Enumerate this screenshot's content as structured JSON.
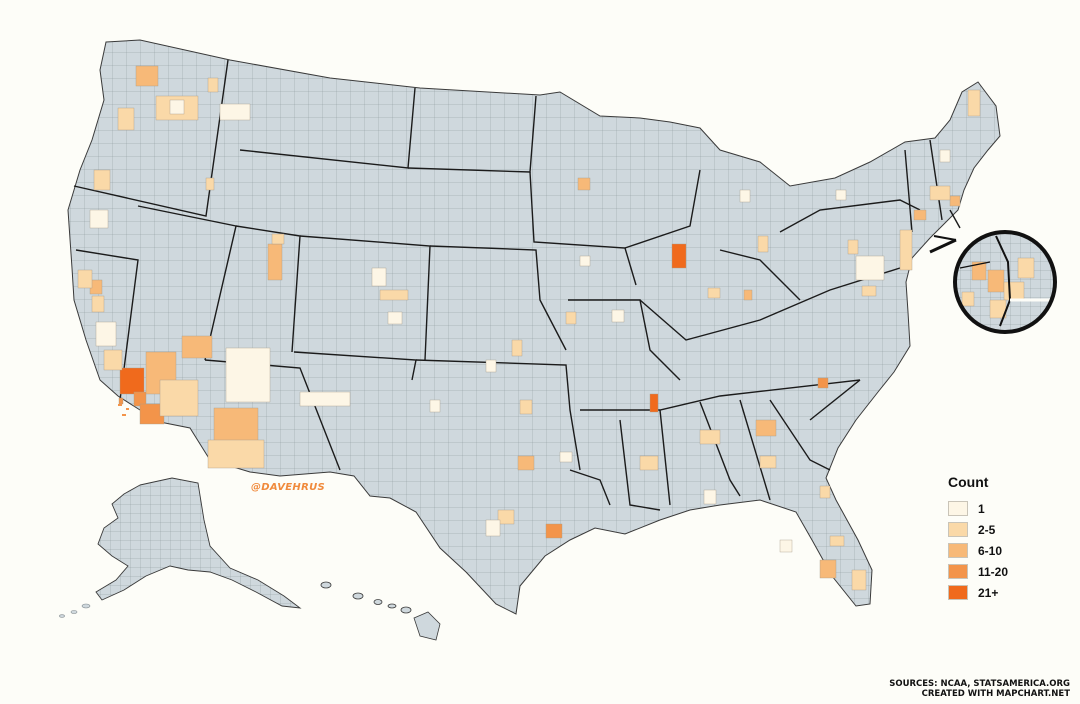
{
  "map": {
    "title": "",
    "subject": "US counties map",
    "colors": {
      "background": "#fdfdf8",
      "county_fill": "#cfd8dd",
      "county_border": "#8c969c",
      "state_border": "#1b1b1b",
      "watermark": "#f08a3c"
    }
  },
  "legend": {
    "title": "Count",
    "items": [
      {
        "label": "1",
        "color": "#fdf6e6"
      },
      {
        "label": "2-5",
        "color": "#fad9a8"
      },
      {
        "label": "6-10",
        "color": "#f7b978"
      },
      {
        "label": "11-20",
        "color": "#f3944a"
      },
      {
        "label": "21+",
        "color": "#f06a1c"
      }
    ]
  },
  "watermark": "@DAVEHRUS",
  "sources": {
    "line1": "SOURCES: NCAA, STATSAMERICA.ORG",
    "line2": "CREATED WITH MAPCHART.NET"
  },
  "highlights": [
    {
      "area": "Los Angeles CA",
      "level": "21+"
    },
    {
      "area": "Cook IL",
      "level": "21+"
    },
    {
      "area": "Shelby TN",
      "level": "21+"
    },
    {
      "area": "Orange CA",
      "level": "11-20"
    },
    {
      "area": "San Diego CA",
      "level": "11-20"
    },
    {
      "area": "Harris TX",
      "level": "11-20"
    },
    {
      "area": "Fulton GA",
      "level": "11-20"
    },
    {
      "area": "Riverside CA",
      "level": "6-10"
    },
    {
      "area": "Maricopa AZ",
      "level": "6-10"
    },
    {
      "area": "Clark NV",
      "level": "6-10"
    },
    {
      "area": "Dallas TX",
      "level": "6-10"
    },
    {
      "area": "Hennepin MN",
      "level": "6-10"
    },
    {
      "area": "Salt Lake UT",
      "level": "6-10"
    },
    {
      "area": "Mecklenburg NC",
      "level": "6-10"
    }
  ]
}
